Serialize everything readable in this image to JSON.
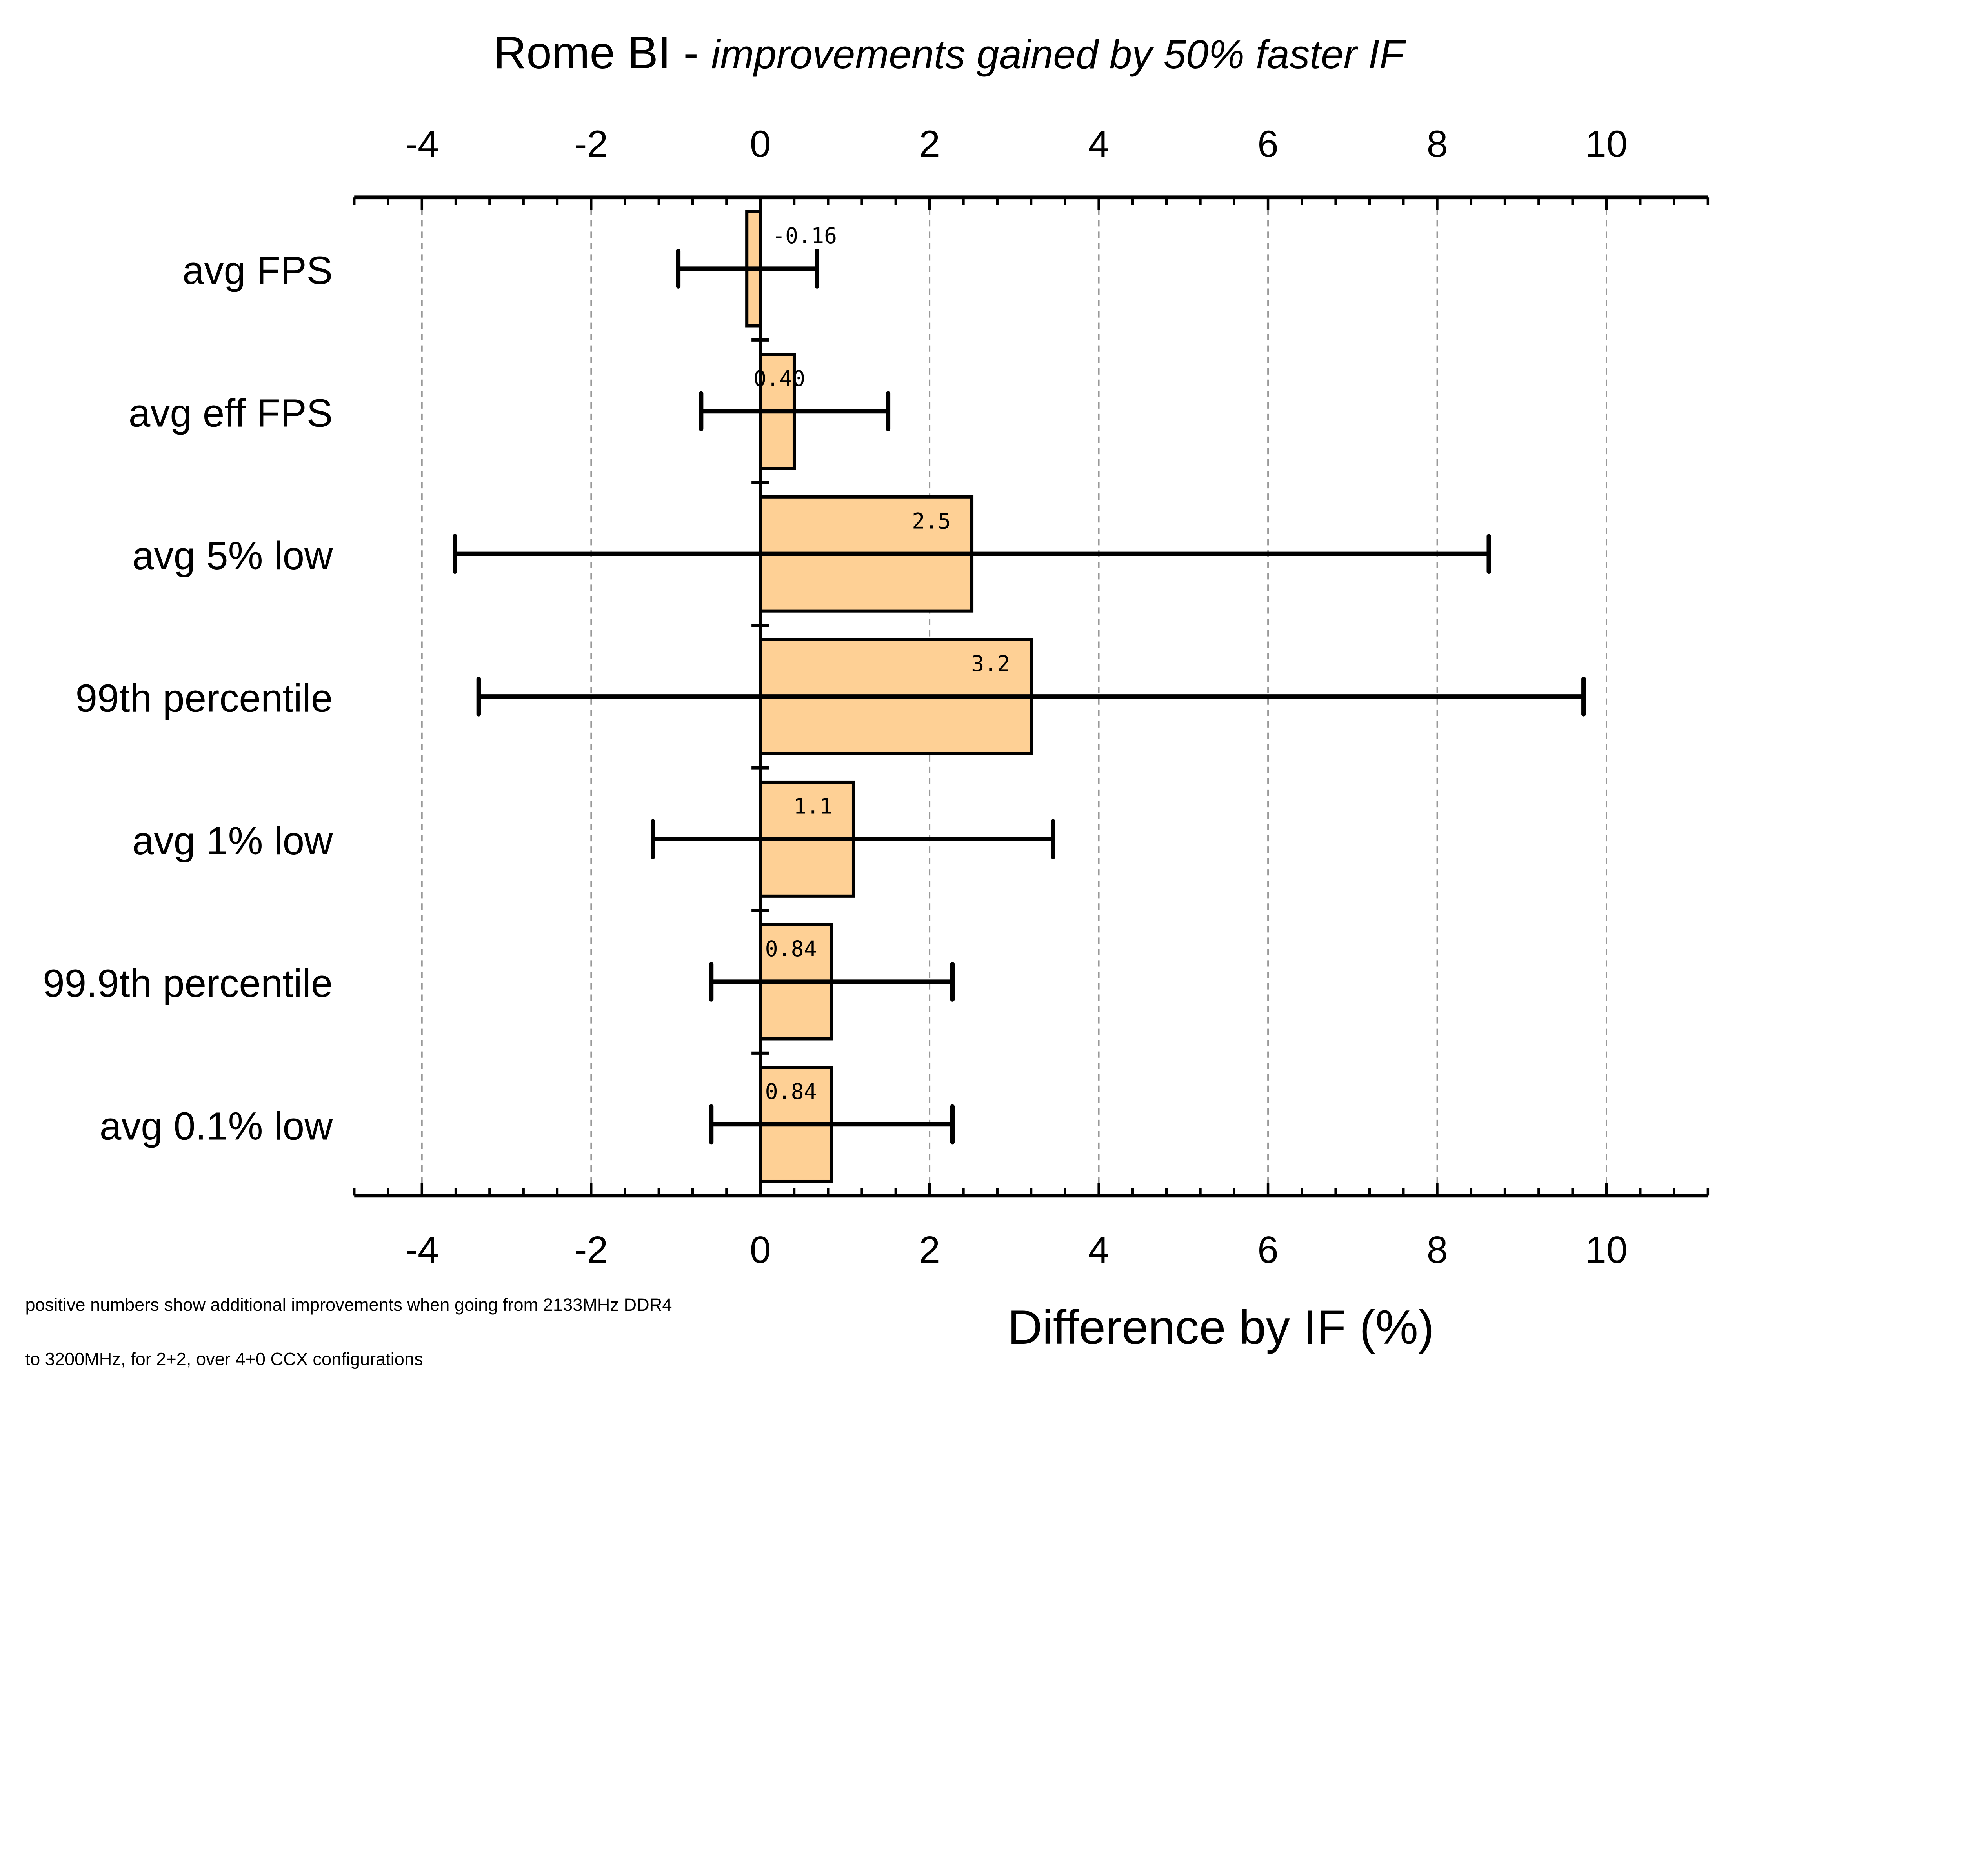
{
  "chart_data": {
    "type": "bar",
    "orientation": "horizontal",
    "title": "Rome BI - ",
    "subtitle": "improvements gained by 50% faster IF",
    "xlabel": "Difference by IF (%)",
    "ylabel": "",
    "xlim": [
      -4.8,
      11.2
    ],
    "xticks": [
      -4,
      -2,
      0,
      2,
      4,
      6,
      8,
      10
    ],
    "minor_tick_step": 0.4,
    "grid": "vertical dashed at major ticks",
    "categories": [
      "avg FPS",
      "avg eff FPS",
      "avg 5% low",
      "99th percentile",
      "avg 1% low",
      "99.9th percentile",
      "avg 0.1% low"
    ],
    "values": [
      -0.16,
      0.4,
      2.5,
      3.2,
      1.1,
      0.84,
      0.84
    ],
    "value_labels": [
      "-0.16",
      "0.40",
      "2.5",
      "3.2",
      "1.1",
      "0.84",
      "0.84"
    ],
    "error_low": [
      -0.97,
      -0.7,
      -3.61,
      -3.33,
      -1.27,
      -0.58,
      -0.58
    ],
    "error_high": [
      0.67,
      1.51,
      8.61,
      9.73,
      3.46,
      2.27,
      2.27
    ],
    "bar_color": "#FED095",
    "footnote_lines": [
      "positive numbers show additional improvements when going from 2133MHz DDR4",
      "to 3200MHz, for 2+2, over 4+0 CCX configurations"
    ]
  }
}
